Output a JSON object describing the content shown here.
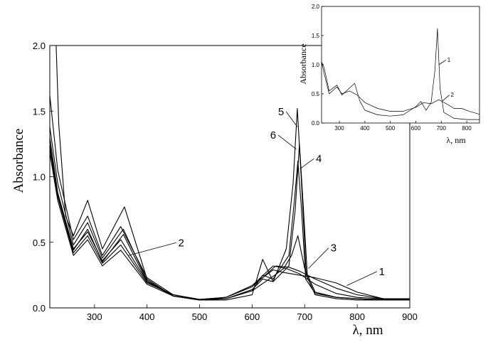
{
  "chart_data": [
    {
      "type": "line",
      "title": "",
      "xlabel": "λ, nm",
      "ylabel": "Absorbance",
      "xlim": [
        215,
        900
      ],
      "ylim": [
        0,
        2.0
      ],
      "xticks": [
        300,
        400,
        500,
        600,
        700,
        800,
        900
      ],
      "xtick_labels": [
        "300",
        "400",
        "500",
        "600",
        "700",
        "800",
        "900"
      ],
      "yticks": [
        0,
        0.5,
        1.0,
        1.5,
        2.0
      ],
      "ytick_labels": [
        "0.0",
        "0.5",
        "1.0",
        "1.5",
        "2.0"
      ],
      "grid": false,
      "series": [
        {
          "name": "1",
          "x": [
            215,
            230,
            260,
            287,
            315,
            350,
            400,
            450,
            500,
            550,
            600,
            640,
            660,
            690,
            720,
            760,
            800,
            850,
            900
          ],
          "y": [
            1.22,
            0.85,
            0.42,
            0.55,
            0.34,
            0.48,
            0.19,
            0.1,
            0.065,
            0.08,
            0.17,
            0.29,
            0.27,
            0.25,
            0.23,
            0.19,
            0.12,
            0.07,
            0.07
          ]
        },
        {
          "name": "2",
          "x": [
            215,
            230,
            260,
            287,
            315,
            350,
            400,
            450,
            500,
            550,
            600,
            645,
            670,
            690,
            720,
            760,
            800,
            850,
            900
          ],
          "y": [
            1.18,
            0.82,
            0.4,
            0.52,
            0.32,
            0.44,
            0.18,
            0.09,
            0.06,
            0.08,
            0.16,
            0.32,
            0.31,
            0.28,
            0.22,
            0.15,
            0.1,
            0.07,
            0.065
          ]
        },
        {
          "name": "3",
          "x": [
            215,
            230,
            260,
            287,
            315,
            350,
            400,
            450,
            500,
            550,
            600,
            640,
            665,
            690,
            720,
            760,
            800,
            850,
            900
          ],
          "y": [
            1.3,
            0.88,
            0.45,
            0.58,
            0.36,
            0.52,
            0.2,
            0.1,
            0.065,
            0.08,
            0.17,
            0.32,
            0.3,
            0.26,
            0.18,
            0.11,
            0.08,
            0.07,
            0.07
          ]
        },
        {
          "name": "4",
          "x": [
            215,
            230,
            260,
            287,
            315,
            355,
            400,
            450,
            500,
            550,
            600,
            620,
            640,
            670,
            682,
            690,
            697,
            705,
            720,
            760,
            800,
            850,
            900
          ],
          "y": [
            1.25,
            0.86,
            0.44,
            0.6,
            0.35,
            0.56,
            0.2,
            0.09,
            0.06,
            0.07,
            0.14,
            0.22,
            0.2,
            0.32,
            0.75,
            1.25,
            0.8,
            0.25,
            0.12,
            0.08,
            0.07,
            0.06,
            0.06
          ]
        },
        {
          "name": "5",
          "x": [
            227,
            232,
            245,
            260,
            287,
            315,
            357,
            400,
            450,
            500,
            550,
            600,
            620,
            640,
            665,
            678,
            686,
            694,
            703,
            720,
            760,
            800,
            850,
            900
          ],
          "y": [
            2.0,
            1.4,
            0.7,
            0.55,
            0.82,
            0.45,
            0.77,
            0.22,
            0.09,
            0.06,
            0.06,
            0.1,
            0.37,
            0.2,
            0.45,
            0.95,
            1.52,
            0.95,
            0.25,
            0.1,
            0.07,
            0.06,
            0.06,
            0.06
          ]
        },
        {
          "name": "6",
          "x": [
            215,
            230,
            260,
            287,
            315,
            355,
            400,
            450,
            500,
            550,
            600,
            620,
            640,
            670,
            680,
            687,
            694,
            702,
            720,
            760,
            800,
            850,
            900
          ],
          "y": [
            1.38,
            0.95,
            0.48,
            0.65,
            0.38,
            0.6,
            0.21,
            0.09,
            0.06,
            0.07,
            0.13,
            0.25,
            0.22,
            0.4,
            0.8,
            1.12,
            0.75,
            0.22,
            0.11,
            0.08,
            0.07,
            0.06,
            0.06
          ]
        },
        {
          "name": "",
          "x": [
            215,
            230,
            260,
            287,
            315,
            350,
            400,
            450,
            500,
            550,
            600,
            640,
            660,
            675,
            687,
            700,
            720,
            760,
            800,
            850,
            900
          ],
          "y": [
            1.62,
            1.05,
            0.52,
            0.7,
            0.4,
            0.62,
            0.23,
            0.1,
            0.065,
            0.07,
            0.13,
            0.24,
            0.3,
            0.4,
            0.55,
            0.3,
            0.12,
            0.08,
            0.07,
            0.065,
            0.065
          ]
        }
      ],
      "annotations": [
        {
          "text": "5",
          "x": 655,
          "y": 1.47,
          "ax": 686,
          "ay": 1.38
        },
        {
          "text": "6",
          "x": 640,
          "y": 1.29,
          "ax": 684,
          "ay": 1.21
        },
        {
          "text": "4",
          "x": 727,
          "y": 1.11,
          "ax": 691,
          "ay": 1.06
        },
        {
          "text": "2",
          "x": 465,
          "y": 0.47,
          "ax": 365,
          "ay": 0.4
        },
        {
          "text": "3",
          "x": 755,
          "y": 0.43,
          "ax": 707,
          "ay": 0.3
        },
        {
          "text": "1",
          "x": 847,
          "y": 0.25,
          "ax": 780,
          "ay": 0.17
        }
      ]
    },
    {
      "type": "line",
      "title": "",
      "xlabel": "λ, nm",
      "ylabel": "Absorbance",
      "xlim": [
        230,
        850
      ],
      "ylim": [
        0,
        2.0
      ],
      "xticks": [
        300,
        400,
        500,
        600,
        700,
        800
      ],
      "xtick_labels": [
        "300",
        "400",
        "500",
        "600",
        "700",
        "800"
      ],
      "yticks": [
        0,
        0.5,
        1.0,
        1.5,
        2.0
      ],
      "ytick_labels": [
        "0.0",
        "0.5",
        "1.0",
        "1.5",
        "2.0"
      ],
      "grid": false,
      "series": [
        {
          "name": "1",
          "x": [
            230,
            240,
            260,
            290,
            310,
            340,
            360,
            380,
            400,
            450,
            500,
            550,
            600,
            620,
            640,
            660,
            675,
            685,
            695,
            710,
            750,
            800,
            850
          ],
          "y": [
            1.05,
            0.95,
            0.55,
            0.65,
            0.48,
            0.6,
            0.68,
            0.38,
            0.22,
            0.14,
            0.12,
            0.14,
            0.28,
            0.37,
            0.22,
            0.35,
            0.9,
            1.62,
            0.6,
            0.18,
            0.08,
            0.06,
            0.06
          ]
        },
        {
          "name": "2",
          "x": [
            230,
            240,
            260,
            290,
            310,
            340,
            370,
            400,
            450,
            500,
            550,
            600,
            630,
            660,
            690,
            720,
            750,
            780,
            810,
            850
          ],
          "y": [
            1.05,
            0.85,
            0.5,
            0.62,
            0.5,
            0.55,
            0.48,
            0.35,
            0.25,
            0.2,
            0.2,
            0.27,
            0.35,
            0.33,
            0.4,
            0.33,
            0.25,
            0.25,
            0.2,
            0.15
          ]
        }
      ],
      "annotations": [
        {
          "text": "1",
          "x": 730,
          "y": 1.05,
          "ax": 690,
          "ay": 1.0
        },
        {
          "text": "2",
          "x": 743,
          "y": 0.45,
          "ax": 705,
          "ay": 0.38
        }
      ]
    }
  ]
}
